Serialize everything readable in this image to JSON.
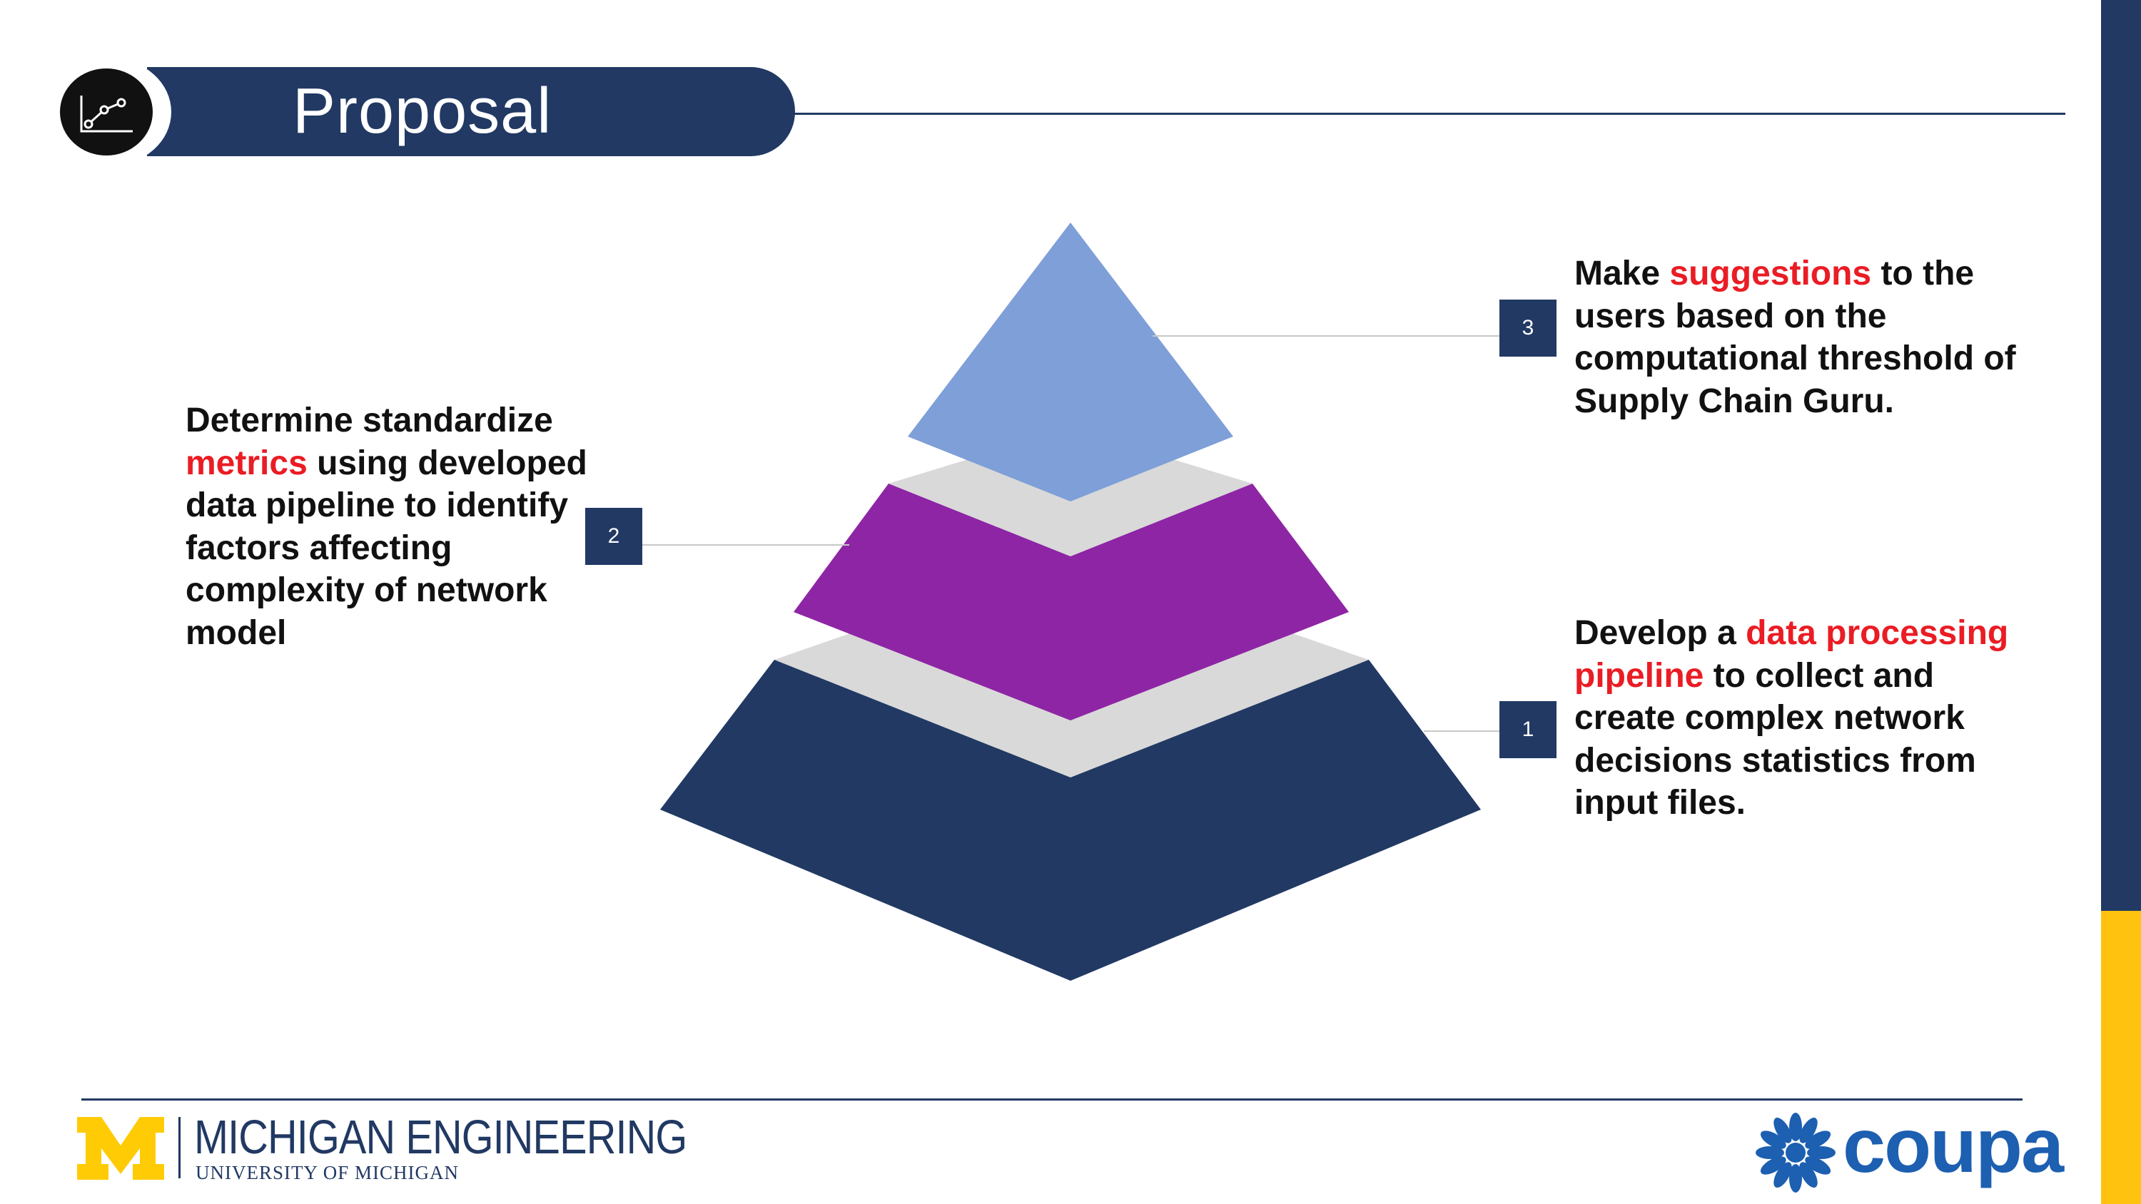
{
  "colors": {
    "navy": "#213963",
    "edge_gold": "#ffc20e",
    "tier_top": "#7e9fd8",
    "tier_middle": "#8e25a5",
    "tier_bottom": "#213963",
    "tier_gap": "#d9d9d9",
    "highlight": "#ea1c24",
    "michigan_maize": "#ffcb05",
    "coupa_blue": "#1d5fb0"
  },
  "header": {
    "title": "Proposal",
    "icon": "line-chart-icon"
  },
  "pyramid": {
    "tiers": [
      {
        "number": "3",
        "level": "top",
        "description_parts": [
          {
            "text": "Make ",
            "highlight": false
          },
          {
            "text": "suggestions",
            "highlight": true
          },
          {
            "text": " to the users based on the computational threshold of Supply Chain Guru.",
            "highlight": false
          }
        ]
      },
      {
        "number": "2",
        "level": "middle",
        "description_parts": [
          {
            "text": "Determine standardize ",
            "highlight": false
          },
          {
            "text": "metrics",
            "highlight": true
          },
          {
            "text": " using developed data pipeline to identify factors affecting complexity of network model",
            "highlight": false
          }
        ]
      },
      {
        "number": "1",
        "level": "bottom",
        "description_parts": [
          {
            "text": "Develop a ",
            "highlight": false
          },
          {
            "text": "data processing pipeline",
            "highlight": true
          },
          {
            "text": " to collect and create complex network decisions statistics from input files.",
            "highlight": false
          }
        ]
      }
    ]
  },
  "footer": {
    "org_name": "MICHIGAN ENGINEERING",
    "org_sub": "UNIVERSITY OF MICHIGAN",
    "michigan_logo": "block-m-logo",
    "partner_name": "coupa",
    "partner_icon": "coupa-flower-icon"
  }
}
